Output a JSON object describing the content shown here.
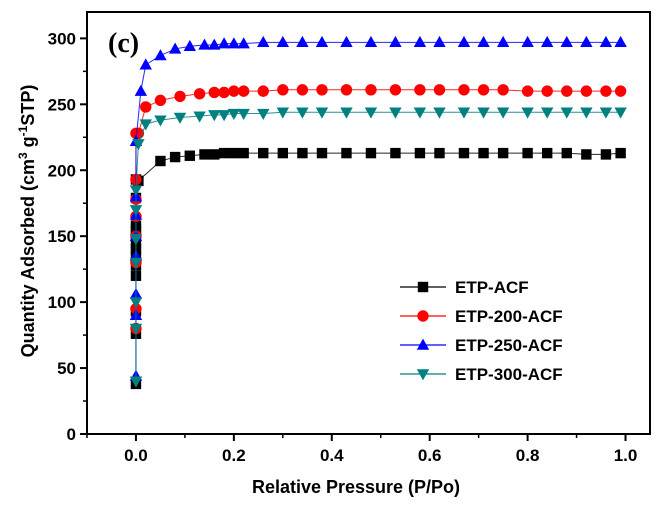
{
  "chart_data": {
    "type": "scatter",
    "panel_label": "(c)",
    "xlabel": "Relative Pressure (P/Po)",
    "ylabel": {
      "pre": "Quantity Adsorbed (cm",
      "sup1": "3",
      "mid": " g",
      "sup2": "-1",
      "post": "STP)"
    },
    "xlim": [
      -0.1,
      1.05
    ],
    "ylim": [
      0,
      320
    ],
    "x_ticks": [
      0.0,
      0.2,
      0.4,
      0.6,
      0.8,
      1.0
    ],
    "x_tick_labels": [
      "0.0",
      "0.2",
      "0.4",
      "0.6",
      "0.8",
      "1.0"
    ],
    "y_ticks": [
      0,
      50,
      100,
      150,
      200,
      250,
      300
    ],
    "y_tick_labels": [
      "0",
      "50",
      "100",
      "150",
      "200",
      "250",
      "300"
    ],
    "legend_position": "lower-right",
    "series": [
      {
        "name": "ETP-ACF",
        "color": "#000000",
        "marker": "square",
        "x": [
          0,
          0,
          0,
          0,
          0,
          0,
          0,
          0,
          0,
          0,
          0,
          0,
          0,
          0.005,
          0.05,
          0.08,
          0.11,
          0.14,
          0.16,
          0.18,
          0.2,
          0.22,
          0.26,
          0.3,
          0.34,
          0.38,
          0.43,
          0.48,
          0.53,
          0.58,
          0.62,
          0.67,
          0.71,
          0.75,
          0.8,
          0.84,
          0.88,
          0.92,
          0.96,
          0.99
        ],
        "y": [
          38,
          76,
          93,
          120,
          128,
          135,
          140,
          144,
          150,
          155,
          158,
          179,
          193,
          192,
          207,
          210,
          211,
          212,
          212,
          213,
          213,
          213,
          213,
          213,
          213,
          213,
          213,
          213,
          213,
          213,
          213,
          213,
          213,
          213,
          213,
          213,
          213,
          212,
          212,
          213
        ]
      },
      {
        "name": "ETP-200-ACF",
        "color": "#ff0000",
        "marker": "circle",
        "x": [
          0,
          0,
          0,
          0,
          0,
          0,
          0,
          0,
          0.005,
          0.02,
          0.05,
          0.09,
          0.13,
          0.16,
          0.18,
          0.2,
          0.22,
          0.26,
          0.3,
          0.34,
          0.38,
          0.43,
          0.48,
          0.53,
          0.58,
          0.62,
          0.67,
          0.71,
          0.75,
          0.8,
          0.84,
          0.88,
          0.92,
          0.96,
          0.99
        ],
        "y": [
          80,
          95,
          130,
          150,
          165,
          178,
          193,
          228,
          228,
          248,
          253,
          256,
          258,
          259,
          259,
          260,
          260,
          260,
          261,
          261,
          261,
          261,
          261,
          261,
          261,
          261,
          261,
          261,
          261,
          260,
          260,
          260,
          260,
          260,
          260
        ]
      },
      {
        "name": "ETP-250-ACF",
        "color": "#0000ff",
        "marker": "triangle",
        "x": [
          0,
          0,
          0,
          0,
          0,
          0,
          0,
          0,
          0.01,
          0.02,
          0.05,
          0.08,
          0.11,
          0.14,
          0.16,
          0.18,
          0.2,
          0.22,
          0.26,
          0.3,
          0.34,
          0.38,
          0.43,
          0.48,
          0.53,
          0.58,
          0.62,
          0.67,
          0.71,
          0.75,
          0.8,
          0.84,
          0.88,
          0.92,
          0.96,
          0.99
        ],
        "y": [
          44,
          90,
          106,
          135,
          150,
          166,
          180,
          222,
          260,
          280,
          287,
          292,
          294,
          295,
          295,
          296,
          296,
          296,
          297,
          297,
          297,
          297,
          297,
          297,
          297,
          297,
          297,
          297,
          297,
          297,
          297,
          297,
          297,
          297,
          297,
          297
        ]
      },
      {
        "name": "ETP-300-ACF",
        "color": "#008080",
        "marker": "triangle-down",
        "x": [
          0,
          0,
          0,
          0,
          0,
          0,
          0,
          0.005,
          0.02,
          0.05,
          0.09,
          0.13,
          0.16,
          0.18,
          0.2,
          0.22,
          0.26,
          0.3,
          0.34,
          0.38,
          0.43,
          0.48,
          0.53,
          0.58,
          0.62,
          0.67,
          0.71,
          0.75,
          0.8,
          0.84,
          0.88,
          0.92,
          0.96,
          0.99
        ],
        "y": [
          40,
          80,
          100,
          130,
          148,
          170,
          185,
          220,
          235,
          238,
          240,
          241,
          242,
          242,
          243,
          243,
          243,
          244,
          244,
          244,
          244,
          244,
          244,
          244,
          244,
          244,
          244,
          244,
          244,
          244,
          244,
          244,
          244,
          244
        ]
      }
    ]
  }
}
